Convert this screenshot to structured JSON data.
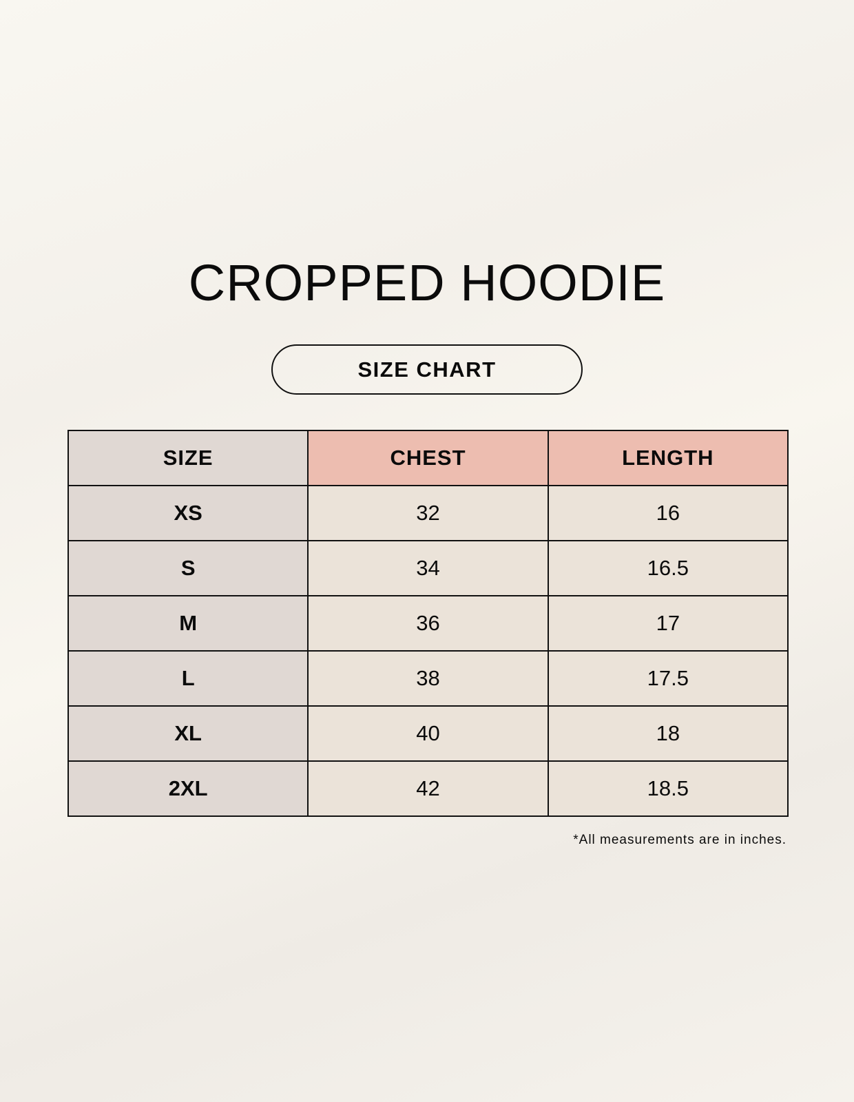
{
  "title": "CROPPED HOODIE",
  "subtitle": "SIZE CHART",
  "table": {
    "headers": [
      "SIZE",
      "CHEST",
      "LENGTH"
    ],
    "rows": [
      [
        "XS",
        "32",
        "16"
      ],
      [
        "S",
        "34",
        "16.5"
      ],
      [
        "M",
        "36",
        "17"
      ],
      [
        "L",
        "38",
        "17.5"
      ],
      [
        "XL",
        "40",
        "18"
      ],
      [
        "2XL",
        "42",
        "18.5"
      ]
    ]
  },
  "footnote": "*All measurements are in inches.",
  "colors": {
    "size_column": "#e0d8d3",
    "header_highlight": "#edbdb0",
    "cell": "#ebe3d9"
  }
}
